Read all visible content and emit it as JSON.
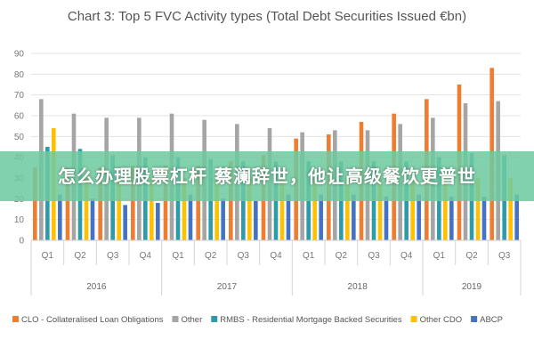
{
  "chart_data": {
    "type": "bar",
    "title": "Chart 3: Top 5 FVC Activity types (Total Debt Securities Issued €bn)",
    "ylim": [
      0,
      90
    ],
    "yticks": [
      0,
      10,
      20,
      30,
      40,
      50,
      60,
      70,
      80,
      90
    ],
    "grid": true,
    "legend_position": "bottom",
    "categories": [
      "Q1",
      "Q2",
      "Q3",
      "Q4",
      "Q1",
      "Q2",
      "Q3",
      "Q4",
      "Q1",
      "Q2",
      "Q3",
      "Q4",
      "Q1",
      "Q2",
      "Q3"
    ],
    "year_groups": [
      {
        "label": "2016",
        "span": 4
      },
      {
        "label": "2017",
        "span": 4
      },
      {
        "label": "2018",
        "span": 4
      },
      {
        "label": "2019",
        "span": 3
      }
    ],
    "series": [
      {
        "name": "CLO - Collateralised Loan Obligations",
        "color": "#ED7D31",
        "values": [
          35,
          35,
          35,
          36,
          36,
          36,
          38,
          41,
          49,
          51,
          57,
          61,
          68,
          75,
          83
        ]
      },
      {
        "name": "Other",
        "color": "#A5A5A5",
        "values": [
          68,
          61,
          59,
          59,
          61,
          58,
          56,
          54,
          52,
          53,
          53,
          56,
          59,
          66,
          67
        ]
      },
      {
        "name": "RMBS - Residential Mortgage Backed Securities",
        "color": "#2E9BA8",
        "values": [
          45,
          44,
          41,
          40,
          40,
          39,
          38,
          38,
          38,
          38,
          38,
          38,
          40,
          42,
          41
        ]
      },
      {
        "name": "Other CDO",
        "color": "#FFC000",
        "values": [
          54,
          30,
          30,
          30,
          30,
          30,
          30,
          30,
          30,
          30,
          30,
          30,
          30,
          30,
          30
        ]
      },
      {
        "name": "ABCP",
        "color": "#4472C4",
        "values": [
          22,
          20,
          17,
          18,
          22,
          20,
          19,
          22,
          22,
          22,
          21,
          22,
          21,
          21,
          22
        ]
      }
    ]
  },
  "banner": {
    "text": "怎么办理股票杠杆 蔡澜辞世，他让高级餐饮更普世",
    "color": "#6EC9A0"
  }
}
